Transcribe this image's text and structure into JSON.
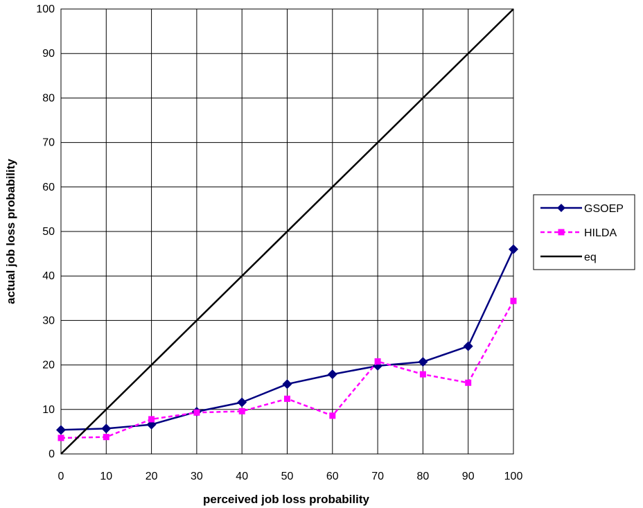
{
  "chart_data": {
    "type": "line",
    "title": "",
    "xlabel": "perceived job loss probability",
    "ylabel": "actual job loss probability",
    "xlim": [
      0,
      100
    ],
    "ylim": [
      0,
      100
    ],
    "xticks": [
      "0",
      "10",
      "20",
      "30",
      "40",
      "50",
      "60",
      "70",
      "80",
      "90",
      "100"
    ],
    "yticks": [
      "0",
      "10",
      "20",
      "30",
      "40",
      "50",
      "60",
      "70",
      "80",
      "90",
      "100"
    ],
    "grid": true,
    "legend_position": "right",
    "x": [
      0,
      10,
      20,
      30,
      40,
      50,
      60,
      70,
      80,
      90,
      100
    ],
    "series": [
      {
        "name": "GSOEP",
        "color": "#000080",
        "marker": "diamond",
        "line_style": "solid",
        "values": [
          5.4,
          5.7,
          6.6,
          9.5,
          11.6,
          15.7,
          17.9,
          19.8,
          20.7,
          24.2,
          46.0
        ]
      },
      {
        "name": "HILDA",
        "color": "#FF00FF",
        "marker": "square",
        "line_style": "dashed",
        "values": [
          3.6,
          3.8,
          7.8,
          9.3,
          9.6,
          12.4,
          8.6,
          20.8,
          17.9,
          16.0,
          34.4
        ]
      },
      {
        "name": "eq",
        "color": "#000000",
        "marker": "none",
        "line_style": "solid",
        "x": [
          0,
          100
        ],
        "values": [
          0,
          100
        ]
      }
    ]
  }
}
